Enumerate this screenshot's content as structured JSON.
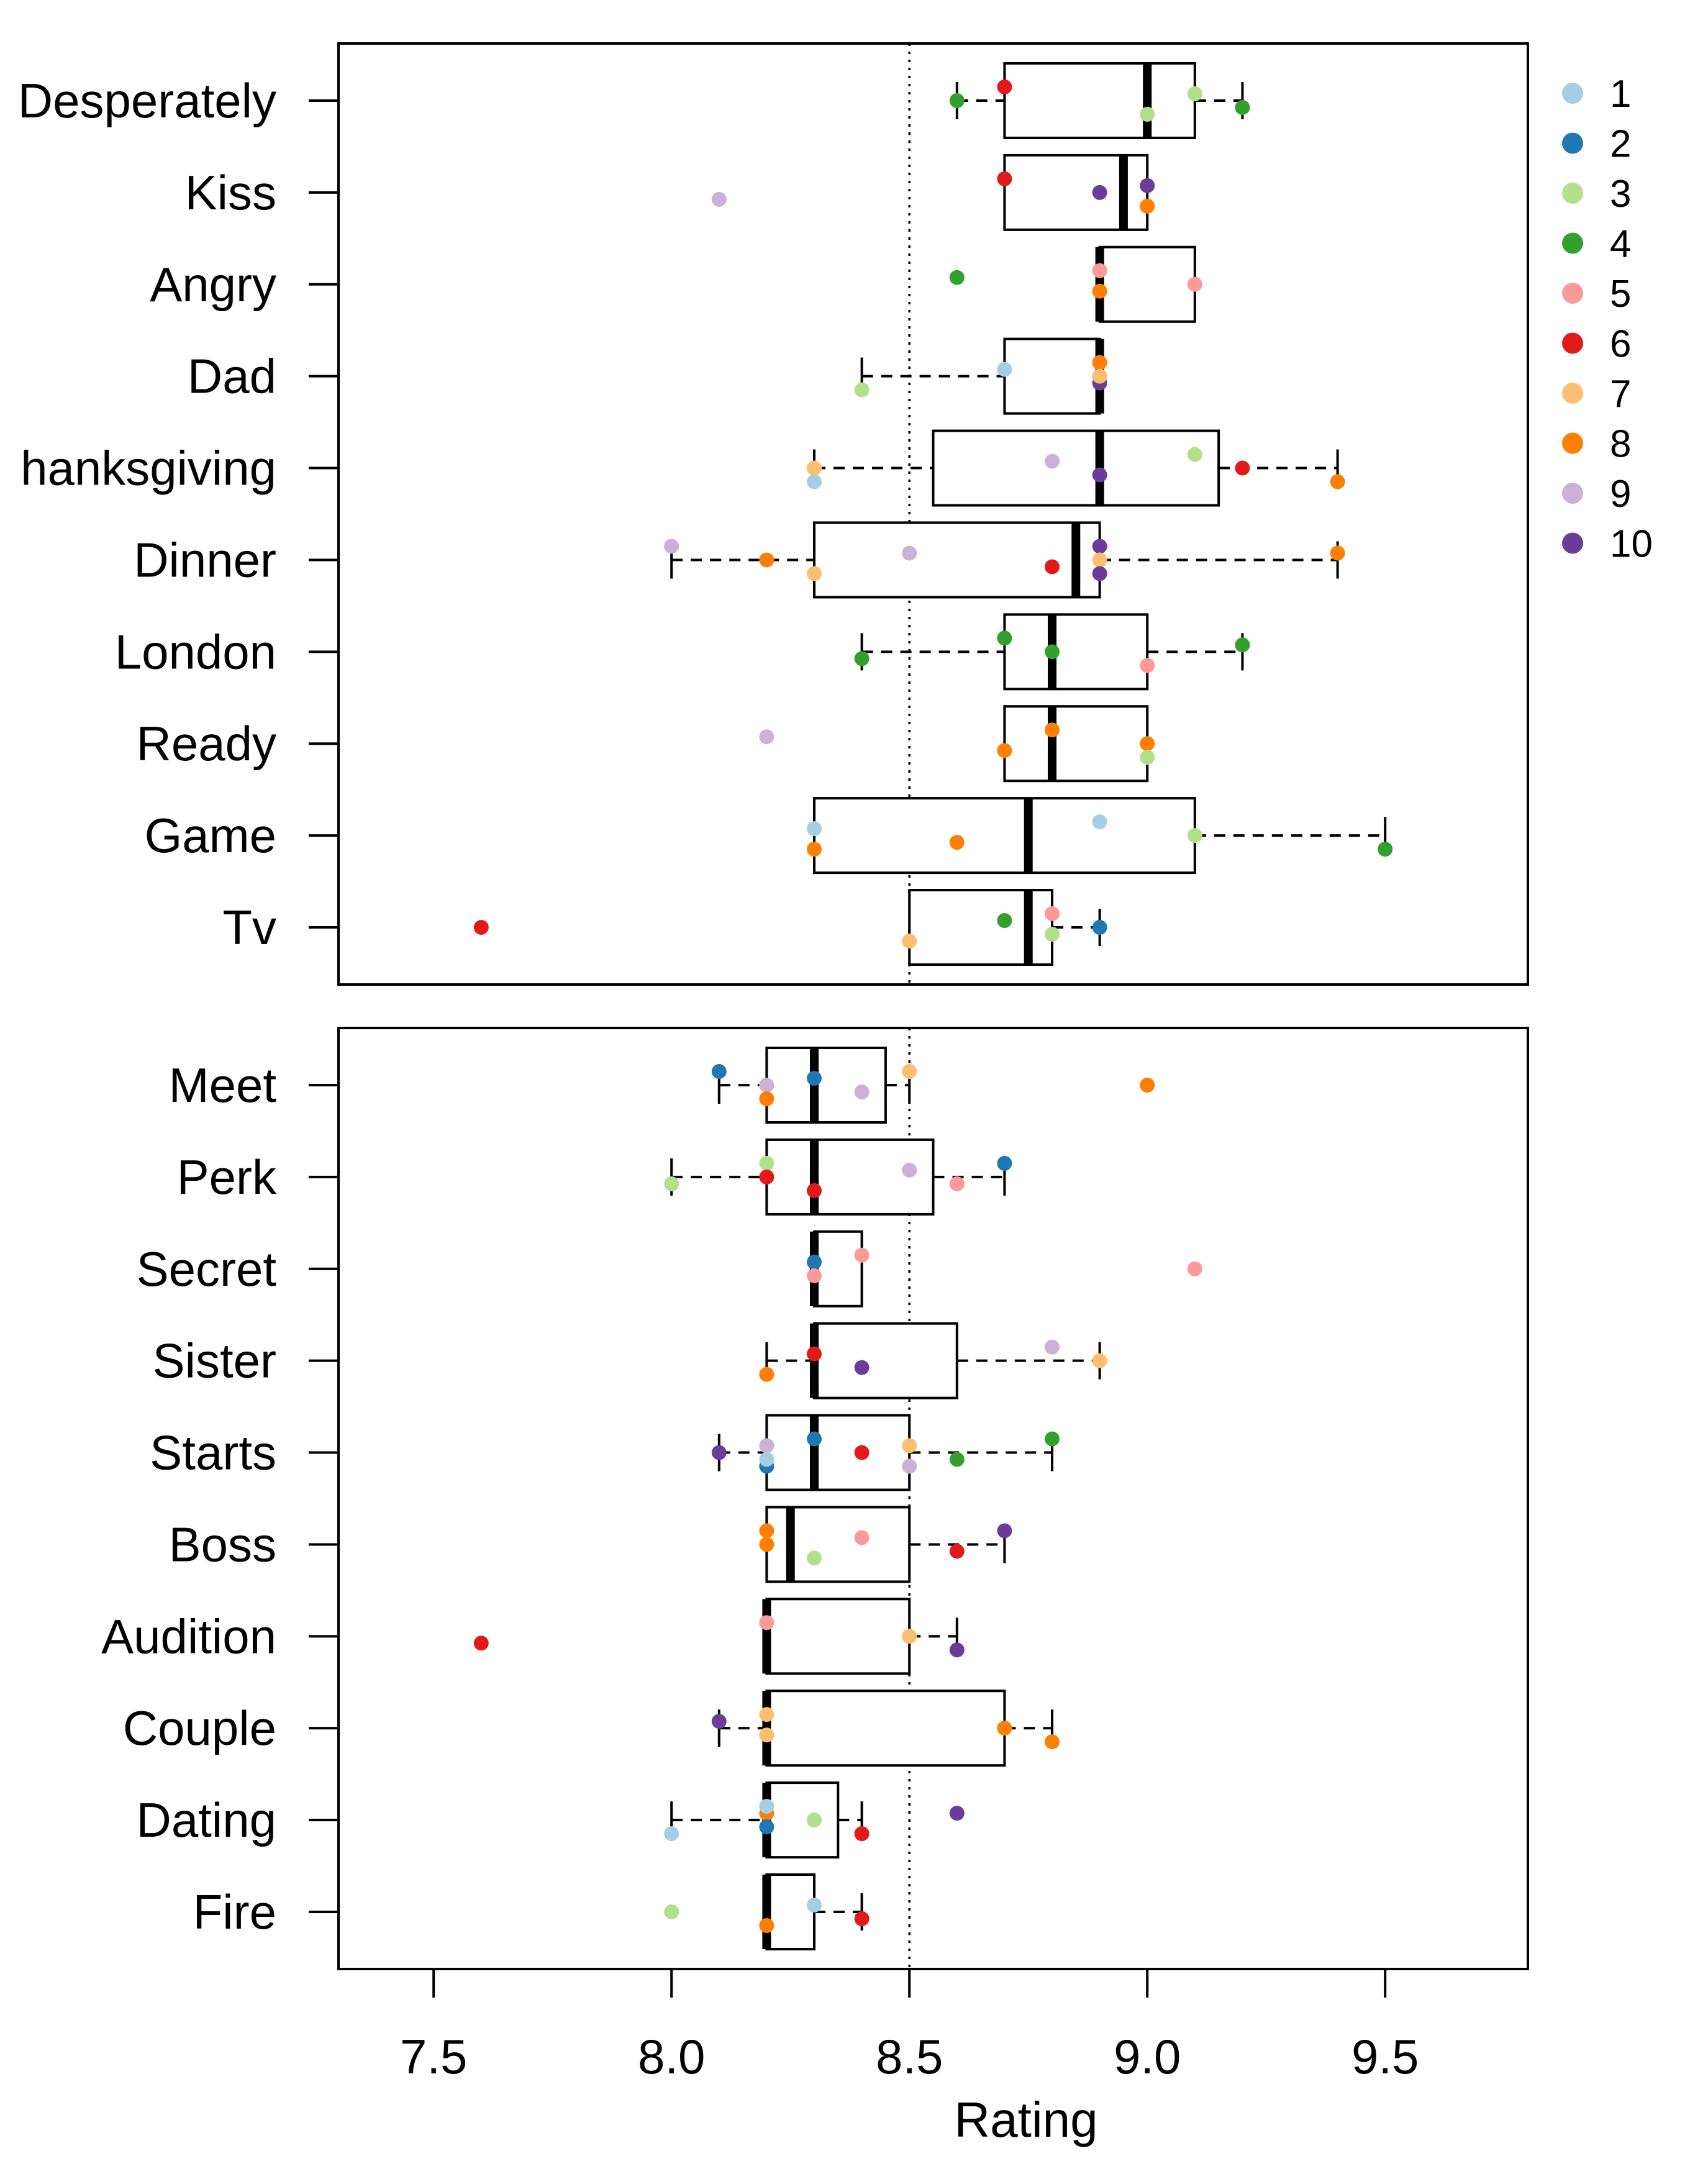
{
  "chart_data": {
    "type": "boxplot",
    "orientation": "horizontal",
    "xlabel": "Rating",
    "xlim": [
      7.3,
      9.8
    ],
    "xticks": [
      7.5,
      8.0,
      8.5,
      9.0,
      9.5
    ],
    "xtick_labels": [
      "7.5",
      "8.0",
      "8.5",
      "9.0",
      "9.5"
    ],
    "reference_line": 8.5,
    "grid": false,
    "legend": {
      "placement": "top-right",
      "entries": [
        {
          "label": "1",
          "color": "#a6cee3"
        },
        {
          "label": "2",
          "color": "#1f78b4"
        },
        {
          "label": "3",
          "color": "#b2df8a"
        },
        {
          "label": "4",
          "color": "#33a02c"
        },
        {
          "label": "5",
          "color": "#fb9a99"
        },
        {
          "label": "6",
          "color": "#e31a1c"
        },
        {
          "label": "7",
          "color": "#fdbf6f"
        },
        {
          "label": "8",
          "color": "#ff7f00"
        },
        {
          "label": "9",
          "color": "#cab2d6"
        },
        {
          "label": "10",
          "color": "#6a3d9a"
        }
      ]
    },
    "panels": [
      {
        "categories": [
          {
            "label": "Desperately",
            "whisker_low": 8.6,
            "q1": 8.7,
            "median": 9.0,
            "q3": 9.1,
            "whisker_high": 9.2,
            "points": [
              [
                8.7,
                6
              ],
              [
                8.6,
                4
              ],
              [
                9.0,
                3
              ],
              [
                9.1,
                3
              ],
              [
                9.2,
                4
              ]
            ]
          },
          {
            "label": "Kiss",
            "whisker_low": null,
            "q1": 8.7,
            "median": 8.95,
            "q3": 9.0,
            "whisker_high": null,
            "points": [
              [
                8.1,
                9
              ],
              [
                8.7,
                6
              ],
              [
                8.9,
                10
              ],
              [
                9.0,
                8
              ],
              [
                9.0,
                10
              ]
            ]
          },
          {
            "label": "Angry",
            "whisker_low": null,
            "q1": 8.9,
            "median": 8.9,
            "q3": 9.1,
            "whisker_high": null,
            "points": [
              [
                8.6,
                4
              ],
              [
                8.9,
                8
              ],
              [
                8.9,
                5
              ],
              [
                9.1,
                5
              ]
            ]
          },
          {
            "label": "Dad",
            "whisker_low": 8.4,
            "q1": 8.7,
            "median": 8.9,
            "q3": 8.9,
            "whisker_high": null,
            "points": [
              [
                8.4,
                3
              ],
              [
                8.7,
                1
              ],
              [
                8.9,
                10
              ],
              [
                8.9,
                8
              ],
              [
                8.9,
                7
              ]
            ]
          },
          {
            "label": "hanksgiving",
            "whisker_low": 8.3,
            "q1": 8.55,
            "median": 8.9,
            "q3": 9.15,
            "whisker_high": 9.4,
            "points": [
              [
                8.3,
                7
              ],
              [
                8.3,
                1
              ],
              [
                8.8,
                9
              ],
              [
                8.9,
                10
              ],
              [
                9.1,
                3
              ],
              [
                9.2,
                6
              ],
              [
                9.4,
                8
              ]
            ]
          },
          {
            "label": "Dinner",
            "whisker_low": 8.0,
            "q1": 8.3,
            "median": 8.85,
            "q3": 8.9,
            "whisker_high": 9.4,
            "points": [
              [
                8.0,
                9
              ],
              [
                8.2,
                8
              ],
              [
                8.3,
                7
              ],
              [
                8.5,
                9
              ],
              [
                8.8,
                6
              ],
              [
                8.9,
                10
              ],
              [
                8.9,
                7
              ],
              [
                8.9,
                10
              ],
              [
                9.4,
                8
              ]
            ]
          },
          {
            "label": "London",
            "whisker_low": 8.4,
            "q1": 8.7,
            "median": 8.8,
            "q3": 9.0,
            "whisker_high": 9.2,
            "points": [
              [
                8.4,
                4
              ],
              [
                8.7,
                4
              ],
              [
                8.8,
                4
              ],
              [
                9.0,
                5
              ],
              [
                9.2,
                4
              ]
            ]
          },
          {
            "label": "Ready",
            "whisker_low": null,
            "q1": 8.7,
            "median": 8.8,
            "q3": 9.0,
            "whisker_high": null,
            "points": [
              [
                8.2,
                9
              ],
              [
                8.7,
                8
              ],
              [
                8.8,
                8
              ],
              [
                9.0,
                8
              ],
              [
                9.0,
                3
              ]
            ]
          },
          {
            "label": "Game",
            "whisker_low": null,
            "q1": 8.3,
            "median": 8.75,
            "q3": 9.1,
            "whisker_high": 9.5,
            "points": [
              [
                8.3,
                8
              ],
              [
                8.3,
                1
              ],
              [
                8.6,
                8
              ],
              [
                8.9,
                1
              ],
              [
                9.1,
                3
              ],
              [
                9.5,
                4
              ]
            ]
          },
          {
            "label": "Tv",
            "whisker_low": null,
            "q1": 8.5,
            "median": 8.75,
            "q3": 8.8,
            "whisker_high": 8.9,
            "points": [
              [
                7.6,
                6
              ],
              [
                8.5,
                7
              ],
              [
                8.7,
                4
              ],
              [
                8.8,
                3
              ],
              [
                8.8,
                5
              ],
              [
                8.9,
                2
              ]
            ]
          }
        ]
      },
      {
        "categories": [
          {
            "label": "Meet",
            "whisker_low": 8.1,
            "q1": 8.2,
            "median": 8.3,
            "q3": 8.45,
            "whisker_high": 8.5,
            "points": [
              [
                8.1,
                2
              ],
              [
                8.2,
                9
              ],
              [
                8.2,
                8
              ],
              [
                8.3,
                2
              ],
              [
                8.4,
                9
              ],
              [
                8.5,
                7
              ],
              [
                9.0,
                8
              ]
            ]
          },
          {
            "label": "Perk",
            "whisker_low": 8.0,
            "q1": 8.2,
            "median": 8.3,
            "q3": 8.55,
            "whisker_high": 8.7,
            "points": [
              [
                8.0,
                3
              ],
              [
                8.2,
                3
              ],
              [
                8.2,
                6
              ],
              [
                8.3,
                6
              ],
              [
                8.5,
                9
              ],
              [
                8.6,
                5
              ],
              [
                8.7,
                2
              ]
            ]
          },
          {
            "label": "Secret",
            "whisker_low": null,
            "q1": 8.3,
            "median": 8.3,
            "q3": 8.4,
            "whisker_high": null,
            "points": [
              [
                8.3,
                2
              ],
              [
                8.3,
                5
              ],
              [
                8.4,
                5
              ],
              [
                9.1,
                5
              ]
            ]
          },
          {
            "label": "Sister",
            "whisker_low": 8.2,
            "q1": 8.3,
            "median": 8.3,
            "q3": 8.6,
            "whisker_high": 8.9,
            "points": [
              [
                8.2,
                8
              ],
              [
                8.3,
                6
              ],
              [
                8.4,
                10
              ],
              [
                8.8,
                9
              ],
              [
                8.9,
                7
              ]
            ]
          },
          {
            "label": "Starts",
            "whisker_low": 8.1,
            "q1": 8.2,
            "median": 8.3,
            "q3": 8.5,
            "whisker_high": 8.8,
            "points": [
              [
                8.1,
                10
              ],
              [
                8.2,
                2
              ],
              [
                8.2,
                9
              ],
              [
                8.2,
                1
              ],
              [
                8.3,
                2
              ],
              [
                8.4,
                6
              ],
              [
                8.5,
                9
              ],
              [
                8.5,
                7
              ],
              [
                8.6,
                4
              ],
              [
                8.8,
                4
              ]
            ]
          },
          {
            "label": "Boss",
            "whisker_low": null,
            "q1": 8.2,
            "median": 8.25,
            "q3": 8.5,
            "whisker_high": 8.7,
            "points": [
              [
                8.2,
                8
              ],
              [
                8.2,
                8
              ],
              [
                8.3,
                3
              ],
              [
                8.4,
                5
              ],
              [
                8.6,
                6
              ],
              [
                8.7,
                10
              ]
            ]
          },
          {
            "label": "Audition",
            "whisker_low": null,
            "q1": 8.2,
            "median": 8.2,
            "q3": 8.5,
            "whisker_high": 8.6,
            "points": [
              [
                7.6,
                6
              ],
              [
                8.2,
                5
              ],
              [
                8.5,
                7
              ],
              [
                8.6,
                10
              ]
            ]
          },
          {
            "label": "Couple",
            "whisker_low": 8.1,
            "q1": 8.2,
            "median": 8.2,
            "q3": 8.7,
            "whisker_high": 8.8,
            "points": [
              [
                8.1,
                10
              ],
              [
                8.2,
                7
              ],
              [
                8.2,
                7
              ],
              [
                8.7,
                8
              ],
              [
                8.8,
                8
              ]
            ]
          },
          {
            "label": "Dating",
            "whisker_low": 8.0,
            "q1": 8.2,
            "median": 8.2,
            "q3": 8.35,
            "whisker_high": 8.4,
            "points": [
              [
                8.0,
                1
              ],
              [
                8.2,
                8
              ],
              [
                8.2,
                2
              ],
              [
                8.2,
                1
              ],
              [
                8.3,
                3
              ],
              [
                8.4,
                6
              ],
              [
                8.6,
                10
              ]
            ]
          },
          {
            "label": "Fire",
            "whisker_low": null,
            "q1": 8.2,
            "median": 8.2,
            "q3": 8.3,
            "whisker_high": 8.4,
            "points": [
              [
                8.0,
                3
              ],
              [
                8.2,
                8
              ],
              [
                8.3,
                1
              ],
              [
                8.4,
                6
              ]
            ]
          }
        ]
      }
    ]
  }
}
